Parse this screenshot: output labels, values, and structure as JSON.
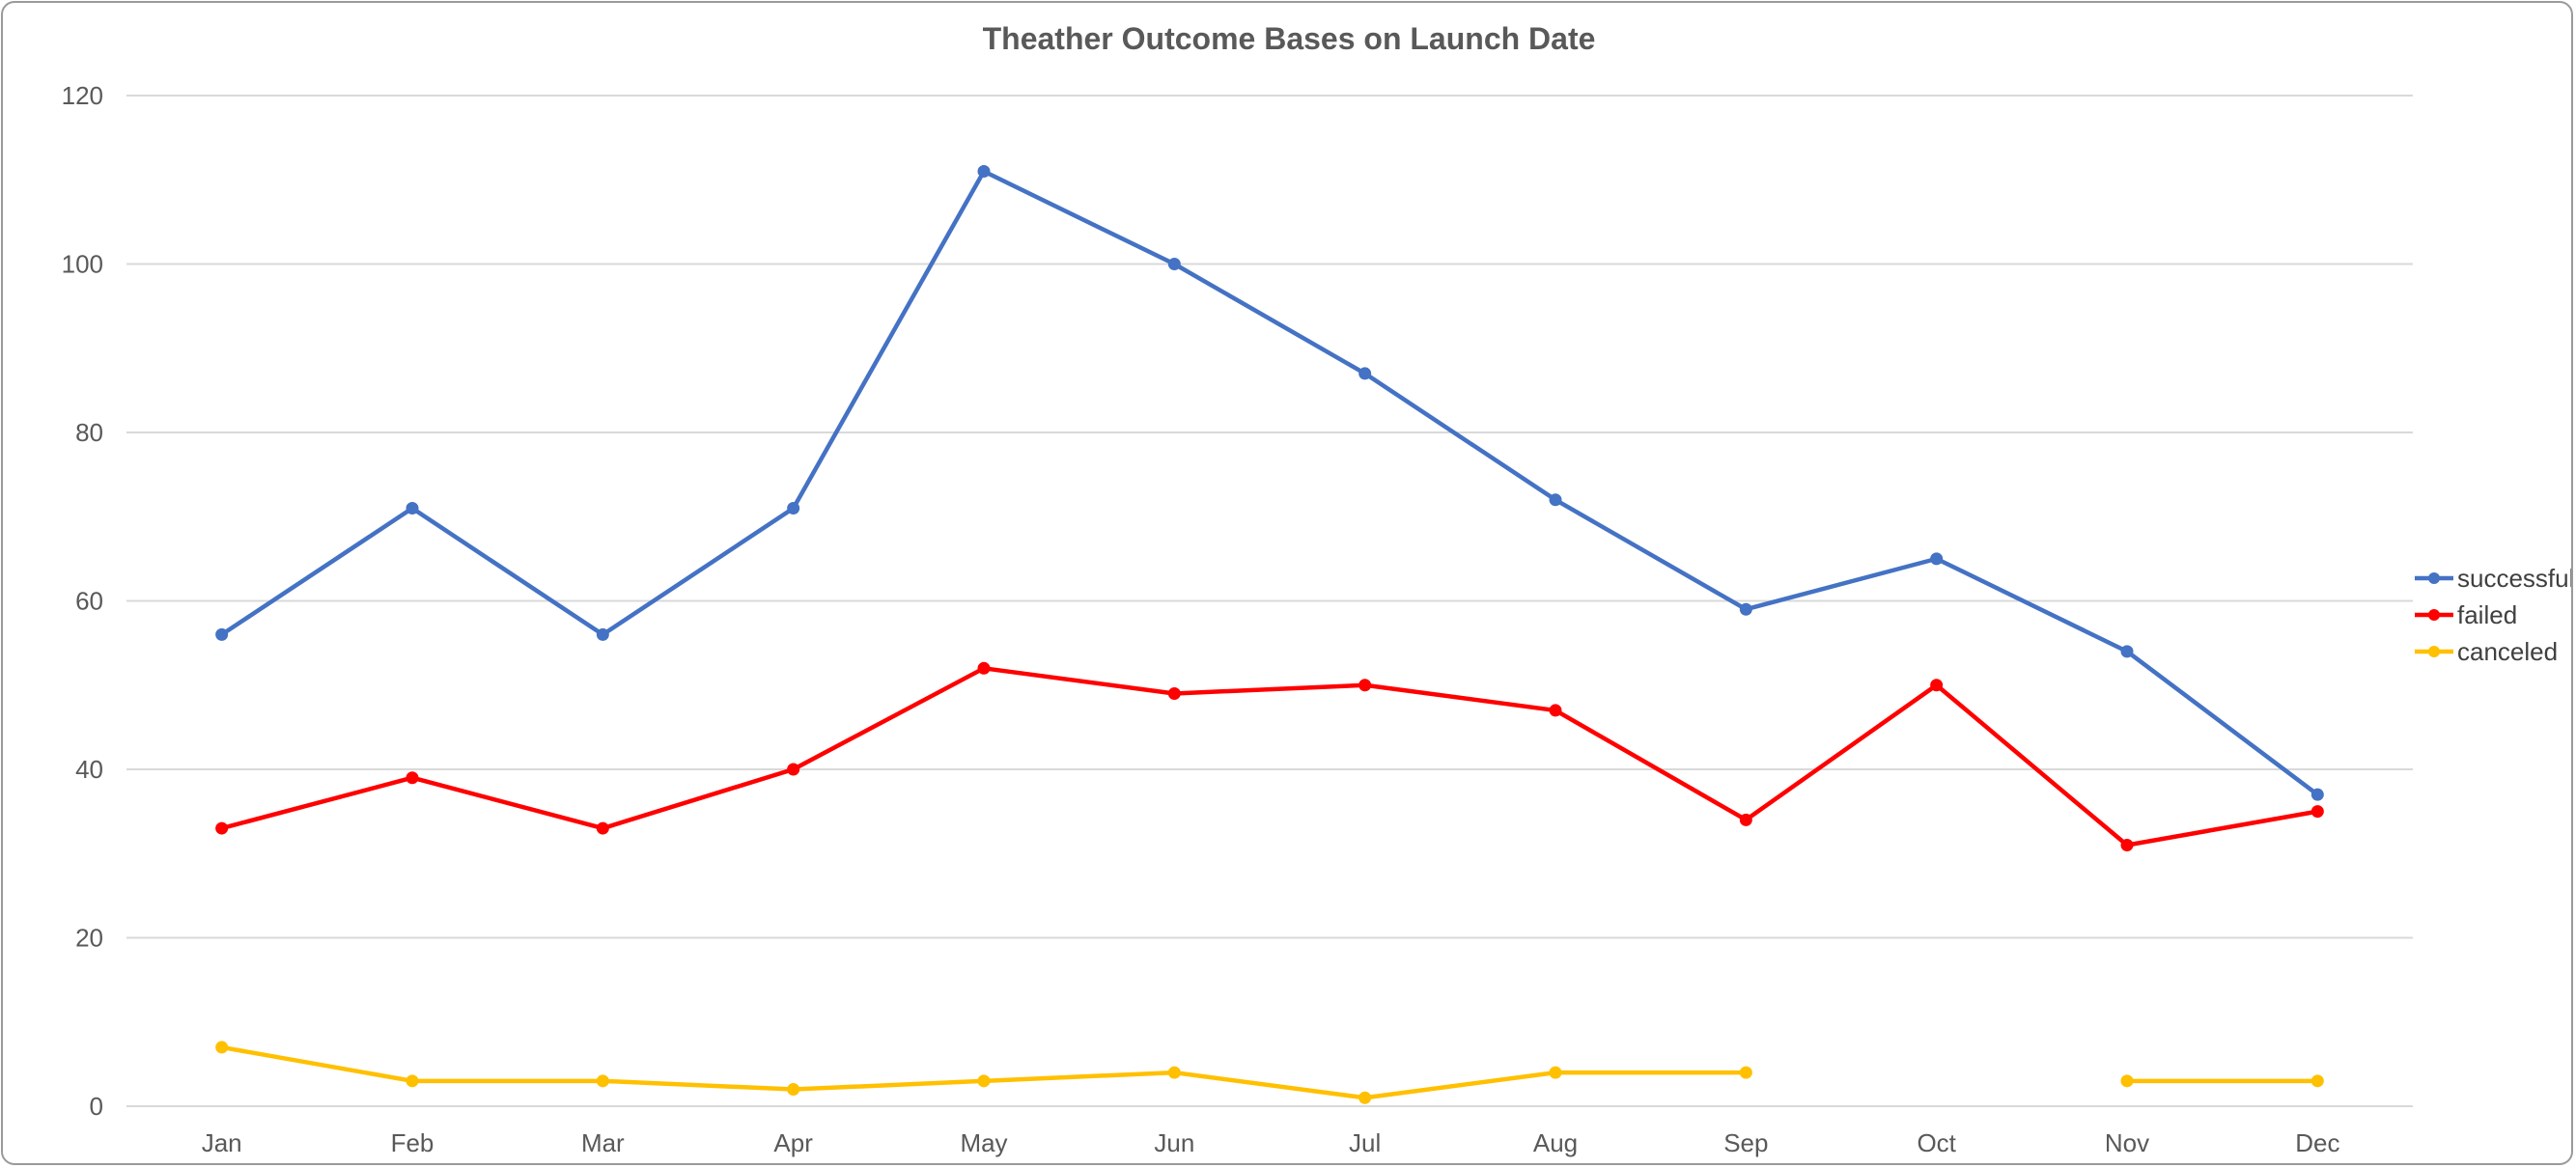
{
  "chart_data": {
    "type": "line",
    "title": "Theather Outcome Bases on Launch Date",
    "xlabel": "",
    "ylabel": "",
    "categories": [
      "Jan",
      "Feb",
      "Mar",
      "Apr",
      "May",
      "Jun",
      "Jul",
      "Aug",
      "Sep",
      "Oct",
      "Nov",
      "Dec"
    ],
    "series": [
      {
        "name": "successful",
        "color": "#4472C4",
        "values": [
          56,
          71,
          56,
          71,
          111,
          100,
          87,
          72,
          59,
          65,
          54,
          37
        ]
      },
      {
        "name": "failed",
        "color": "#FF0000",
        "values": [
          33,
          39,
          33,
          40,
          52,
          49,
          50,
          47,
          34,
          50,
          31,
          35
        ]
      },
      {
        "name": "canceled",
        "color": "#FFC000",
        "values": [
          7,
          3,
          3,
          2,
          3,
          4,
          1,
          4,
          4,
          null,
          3,
          3
        ]
      }
    ],
    "ylim": [
      0,
      120
    ],
    "yticks": [
      0,
      20,
      40,
      60,
      80,
      100,
      120
    ],
    "grid": true,
    "legend_position": "right"
  }
}
